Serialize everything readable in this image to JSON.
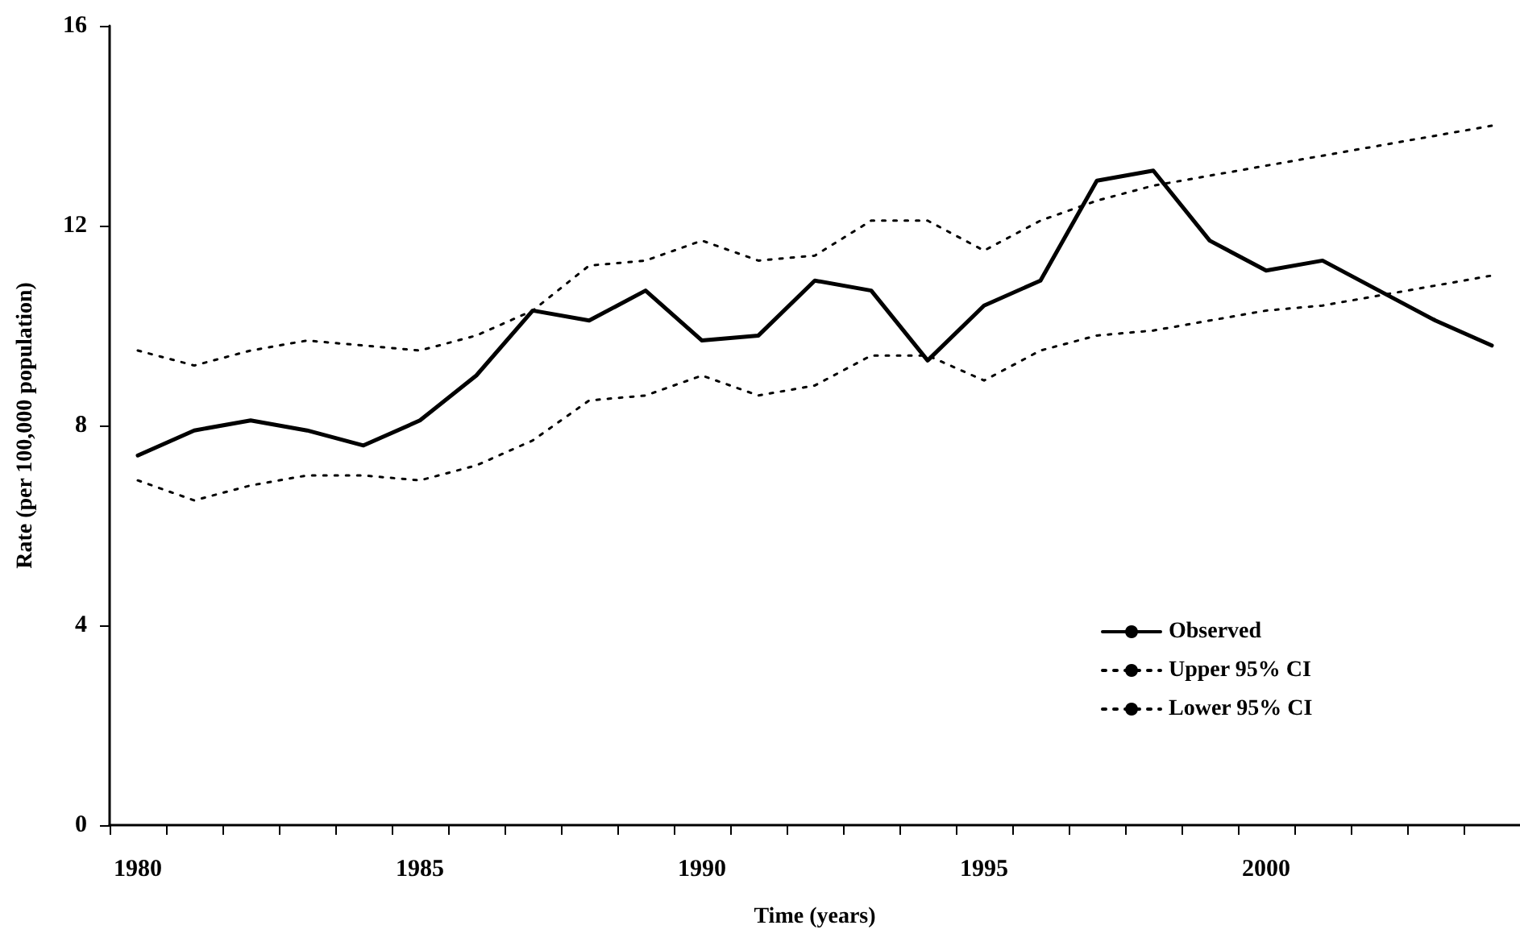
{
  "chart_data": {
    "type": "line",
    "xlabel": "Time (years)",
    "ylabel": "Rate (per 100,000 population)",
    "categories": [
      "1980",
      null,
      null,
      null,
      null,
      "1985",
      null,
      null,
      null,
      null,
      "1990",
      null,
      null,
      null,
      null,
      "1995",
      null,
      null,
      null,
      null,
      "2000",
      null,
      null,
      null,
      null
    ],
    "series": [
      {
        "name": "Observed",
        "color": "#000000",
        "line_style": "solid",
        "values": [
          7.4,
          7.9,
          8.1,
          7.9,
          7.6,
          8.1,
          9.0,
          10.3,
          10.1,
          10.7,
          9.7,
          9.8,
          10.9,
          10.7,
          9.3,
          10.4,
          10.9,
          12.9,
          13.1,
          11.7,
          11.1,
          11.3,
          10.7,
          10.1,
          9.6
        ]
      },
      {
        "name": "Upper 95% CI",
        "color": "#000000",
        "line_style": "dotted",
        "values": [
          9.5,
          9.2,
          9.5,
          9.7,
          9.6,
          9.5,
          9.8,
          10.3,
          11.2,
          11.3,
          11.7,
          11.3,
          11.4,
          12.1,
          12.1,
          11.5,
          12.1,
          12.5,
          12.8,
          13.0,
          13.2,
          13.4,
          13.6,
          13.8,
          14.0
        ]
      },
      {
        "name": "Lower 95% CI",
        "color": "#000000",
        "line_style": "dotted",
        "values": [
          6.9,
          6.5,
          6.8,
          7.0,
          7.0,
          6.9,
          7.2,
          7.7,
          8.5,
          8.6,
          9.0,
          8.6,
          8.8,
          9.4,
          9.4,
          8.9,
          9.5,
          9.8,
          9.9,
          10.1,
          10.3,
          10.4,
          10.6,
          10.8,
          11.0
        ]
      }
    ],
    "ylim": [
      0,
      16
    ],
    "yticks": [
      0,
      4,
      8,
      12,
      16
    ],
    "grid": false,
    "legend": "bottom right",
    "marker": "none"
  }
}
